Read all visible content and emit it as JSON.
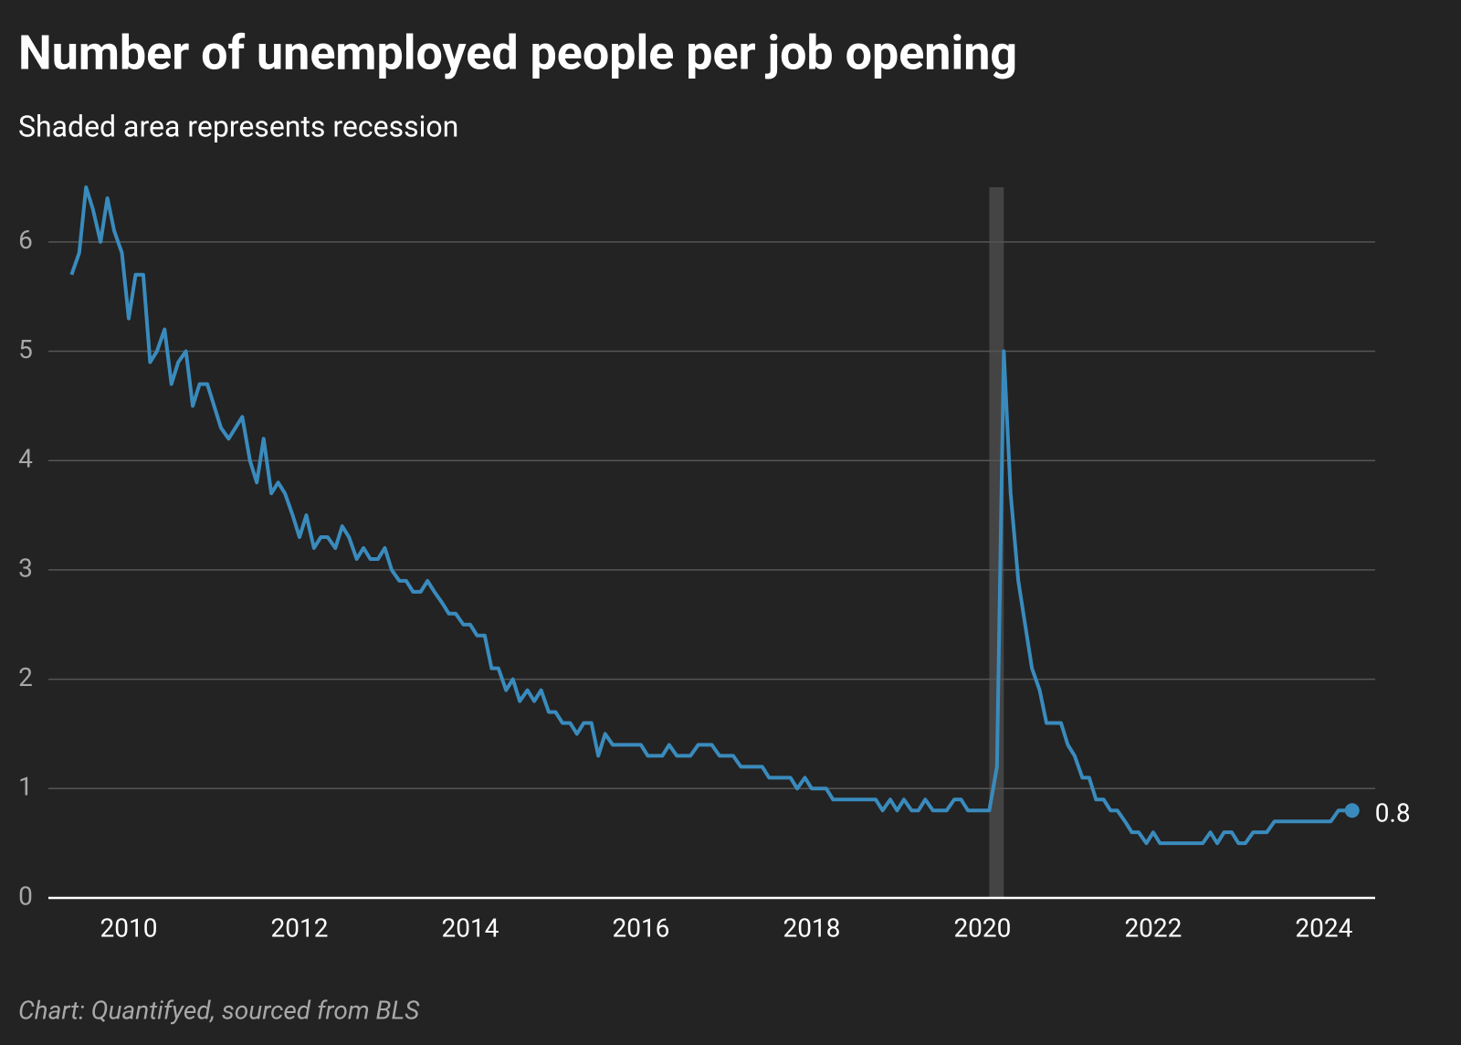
{
  "chart_data": {
    "type": "line",
    "title": "Number of unemployed people per job opening",
    "subtitle": "Shaded area represents recession",
    "source": "Chart: Quantifyed, sourced from BLS",
    "color": "#3a8bbd",
    "grid": true,
    "recession": [
      2020.08,
      2020.25
    ],
    "xlim": [
      2009,
      2024.6
    ],
    "xticks": [
      2010,
      2012,
      2014,
      2016,
      2018,
      2020,
      2022,
      2024
    ],
    "ylim": [
      0,
      6.5
    ],
    "yticks": [
      0,
      1,
      2,
      3,
      4,
      5,
      6
    ],
    "x": [
      2009.33,
      2009.42,
      2009.5,
      2009.58,
      2009.67,
      2009.75,
      2009.83,
      2009.92,
      2010,
      2010.08,
      2010.17,
      2010.25,
      2010.33,
      2010.42,
      2010.5,
      2010.58,
      2010.67,
      2010.75,
      2010.83,
      2010.92,
      2011,
      2011.08,
      2011.17,
      2011.25,
      2011.33,
      2011.42,
      2011.5,
      2011.58,
      2011.67,
      2011.75,
      2011.83,
      2011.92,
      2012,
      2012.08,
      2012.17,
      2012.25,
      2012.33,
      2012.42,
      2012.5,
      2012.58,
      2012.67,
      2012.75,
      2012.83,
      2012.92,
      2013,
      2013.08,
      2013.17,
      2013.25,
      2013.33,
      2013.42,
      2013.5,
      2013.58,
      2013.67,
      2013.75,
      2013.83,
      2013.92,
      2014,
      2014.08,
      2014.17,
      2014.25,
      2014.33,
      2014.42,
      2014.5,
      2014.58,
      2014.67,
      2014.75,
      2014.83,
      2014.92,
      2015,
      2015.08,
      2015.17,
      2015.25,
      2015.33,
      2015.42,
      2015.5,
      2015.58,
      2015.67,
      2015.75,
      2015.83,
      2015.92,
      2016,
      2016.08,
      2016.17,
      2016.25,
      2016.33,
      2016.42,
      2016.5,
      2016.58,
      2016.67,
      2016.75,
      2016.83,
      2016.92,
      2017,
      2017.08,
      2017.17,
      2017.25,
      2017.33,
      2017.42,
      2017.5,
      2017.58,
      2017.67,
      2017.75,
      2017.83,
      2017.92,
      2018,
      2018.08,
      2018.17,
      2018.25,
      2018.33,
      2018.42,
      2018.5,
      2018.58,
      2018.67,
      2018.75,
      2018.83,
      2018.92,
      2019,
      2019.08,
      2019.17,
      2019.25,
      2019.33,
      2019.42,
      2019.5,
      2019.58,
      2019.67,
      2019.75,
      2019.83,
      2019.92,
      2020,
      2020.08,
      2020.17,
      2020.25,
      2020.33,
      2020.42,
      2020.5,
      2020.58,
      2020.67,
      2020.75,
      2020.83,
      2020.92,
      2021,
      2021.08,
      2021.17,
      2021.25,
      2021.33,
      2021.42,
      2021.5,
      2021.58,
      2021.67,
      2021.75,
      2021.83,
      2021.92,
      2022,
      2022.08,
      2022.17,
      2022.25,
      2022.33,
      2022.42,
      2022.5,
      2022.58,
      2022.67,
      2022.75,
      2022.83,
      2022.92,
      2023,
      2023.08,
      2023.17,
      2023.25,
      2023.33,
      2023.42,
      2023.5,
      2023.58,
      2023.67,
      2023.75,
      2023.83,
      2023.92,
      2024,
      2024.08,
      2024.17,
      2024.25,
      2024.33
    ],
    "values": [
      5.7,
      5.9,
      6.5,
      6.3,
      6.0,
      6.4,
      6.1,
      5.9,
      5.3,
      5.7,
      5.7,
      4.9,
      5.0,
      5.2,
      4.7,
      4.9,
      5.0,
      4.5,
      4.7,
      4.7,
      4.5,
      4.3,
      4.2,
      4.3,
      4.4,
      4.0,
      3.8,
      4.2,
      3.7,
      3.8,
      3.7,
      3.5,
      3.3,
      3.5,
      3.2,
      3.3,
      3.3,
      3.2,
      3.4,
      3.3,
      3.1,
      3.2,
      3.1,
      3.1,
      3.2,
      3.0,
      2.9,
      2.9,
      2.8,
      2.8,
      2.9,
      2.8,
      2.7,
      2.6,
      2.6,
      2.5,
      2.5,
      2.4,
      2.4,
      2.1,
      2.1,
      1.9,
      2.0,
      1.8,
      1.9,
      1.8,
      1.9,
      1.7,
      1.7,
      1.6,
      1.6,
      1.5,
      1.6,
      1.6,
      1.3,
      1.5,
      1.4,
      1.4,
      1.4,
      1.4,
      1.4,
      1.3,
      1.3,
      1.3,
      1.4,
      1.3,
      1.3,
      1.3,
      1.4,
      1.4,
      1.4,
      1.3,
      1.3,
      1.3,
      1.2,
      1.2,
      1.2,
      1.2,
      1.1,
      1.1,
      1.1,
      1.1,
      1.0,
      1.1,
      1.0,
      1.0,
      1.0,
      0.9,
      0.9,
      0.9,
      0.9,
      0.9,
      0.9,
      0.9,
      0.8,
      0.9,
      0.8,
      0.9,
      0.8,
      0.8,
      0.9,
      0.8,
      0.8,
      0.8,
      0.9,
      0.9,
      0.8,
      0.8,
      0.8,
      0.8,
      1.2,
      5.0,
      3.7,
      2.9,
      2.5,
      2.1,
      1.9,
      1.6,
      1.6,
      1.6,
      1.4,
      1.3,
      1.1,
      1.1,
      0.9,
      0.9,
      0.8,
      0.8,
      0.7,
      0.6,
      0.6,
      0.5,
      0.6,
      0.5,
      0.5,
      0.5,
      0.5,
      0.5,
      0.5,
      0.5,
      0.6,
      0.5,
      0.6,
      0.6,
      0.5,
      0.5,
      0.6,
      0.6,
      0.6,
      0.7,
      0.7,
      0.7,
      0.7,
      0.7,
      0.7,
      0.7,
      0.7,
      0.7,
      0.8,
      0.8,
      0.8
    ]
  }
}
